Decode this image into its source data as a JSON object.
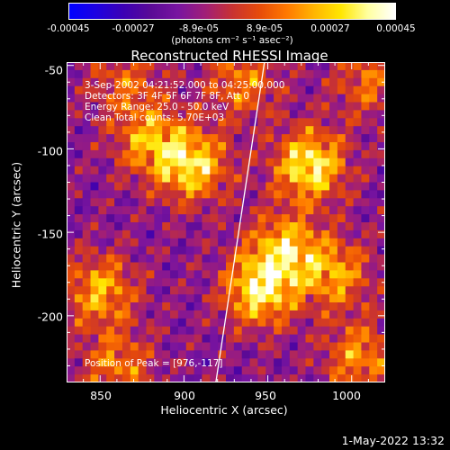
{
  "colorbar": {
    "ticks": [
      "-0.00045",
      "-0.00027",
      "-8.9e-05",
      "8.9e-05",
      "0.00027",
      "0.00045"
    ],
    "tick_values": [
      -0.00045,
      -0.00027,
      -8.9e-05,
      8.9e-05,
      0.00027,
      0.00045
    ],
    "unit_label": "(photons cm⁻² s⁻¹ asec⁻²)",
    "colors": [
      "#0000ff",
      "#1e00e0",
      "#3c00b4",
      "#5a0a96",
      "#7814a0",
      "#a01e78",
      "#c83232",
      "#e64b0a",
      "#ff7800",
      "#ffb400",
      "#ffe600",
      "#ffffa0",
      "#ffffff"
    ]
  },
  "chart_data": {
    "type": "heatmap",
    "title": "Reconstructed RHESSI Image",
    "xlabel": "Heliocentric X (arcsec)",
    "ylabel": "Heliocentric Y (arcsec)",
    "xlim": [
      830,
      1020
    ],
    "ylim": [
      -240,
      -48
    ],
    "x_ticks": [
      850,
      900,
      950,
      1000
    ],
    "y_ticks": [
      -50,
      -100,
      -150,
      -200
    ],
    "zlim": [
      -0.00045,
      0.00045
    ],
    "limb_line": {
      "x": [
        948,
        919
      ],
      "y": [
        -48,
        -240
      ]
    },
    "peak": {
      "x": 976,
      "y": -117
    },
    "bright_regions": [
      {
        "x": 905,
        "y": -110,
        "intensity": 0.0004
      },
      {
        "x": 880,
        "y": -95,
        "intensity": 0.0003
      },
      {
        "x": 975,
        "y": -110,
        "intensity": 0.00045
      },
      {
        "x": 960,
        "y": -160,
        "intensity": 0.00035
      },
      {
        "x": 945,
        "y": -185,
        "intensity": 0.00042
      },
      {
        "x": 990,
        "y": -175,
        "intensity": 0.0003
      },
      {
        "x": 850,
        "y": -185,
        "intensity": 0.00032
      },
      {
        "x": 860,
        "y": -230,
        "intensity": 0.00025
      },
      {
        "x": 1005,
        "y": -225,
        "intensity": 0.00028
      },
      {
        "x": 1010,
        "y": -60,
        "intensity": 0.00022
      },
      {
        "x": 935,
        "y": -60,
        "intensity": 0.00025
      },
      {
        "x": 865,
        "y": -60,
        "intensity": 0.0002
      }
    ]
  },
  "annotations": {
    "time": "3-Sep-2002 04:21:52.000 to 04:25:00.000",
    "detectors": "Detectors: 3F 4F 5F 6F 7F 8F, Att 0",
    "energy": "Energy Range: 25.0 - 50.0 keV",
    "clean": "Clean    Total counts: 5.70E+03",
    "peak": "Position of Peak = [976,-117]"
  },
  "footer": {
    "timestamp": "1-May-2022 13:32"
  }
}
